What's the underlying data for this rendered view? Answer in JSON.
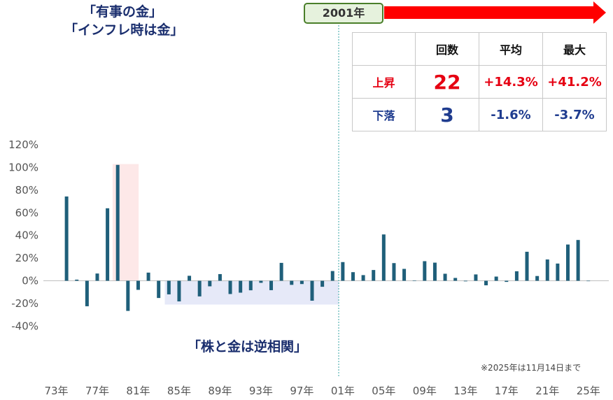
{
  "chart_data": {
    "type": "bar",
    "title": "",
    "xlabel": "",
    "ylabel": "",
    "ylim": [
      -40,
      120
    ],
    "yticks": [
      -40,
      -20,
      0,
      20,
      40,
      60,
      80,
      100,
      120
    ],
    "y_tick_labels": [
      "-40%",
      "-20%",
      "0%",
      "20%",
      "40%",
      "60%",
      "80%",
      "100%",
      "120%"
    ],
    "x_tick_labels": [
      "73年",
      "77年",
      "81年",
      "85年",
      "89年",
      "93年",
      "97年",
      "01年",
      "05年",
      "09年",
      "13年",
      "17年",
      "21年",
      "25年"
    ],
    "x_tick_years": [
      1973,
      1977,
      1981,
      1985,
      1989,
      1993,
      1997,
      2001,
      2005,
      2009,
      2013,
      2017,
      2021,
      2025
    ],
    "years": [
      1974,
      1975,
      1976,
      1977,
      1978,
      1979,
      1980,
      1981,
      1982,
      1983,
      1984,
      1985,
      1986,
      1987,
      1988,
      1989,
      1990,
      1991,
      1992,
      1993,
      1994,
      1995,
      1996,
      1997,
      1998,
      1999,
      2000,
      2001,
      2002,
      2003,
      2004,
      2005,
      2006,
      2007,
      2008,
      2009,
      2010,
      2011,
      2012,
      2013,
      2014,
      2015,
      2016,
      2017,
      2018,
      2019,
      2020,
      2021,
      2022,
      2023,
      2024,
      2025
    ],
    "values": [
      74.4,
      1.0,
      -22.5,
      6.4,
      64.0,
      102.3,
      -26.6,
      -8.0,
      7.2,
      -15.2,
      -12.0,
      -18.2,
      4.4,
      -13.8,
      -4.9,
      5.9,
      -11.7,
      -10.5,
      -8.4,
      -1.8,
      -8.3,
      15.8,
      -3.6,
      -2.9,
      -17.6,
      -5.3,
      8.6,
      16.5,
      7.6,
      5.0,
      9.5,
      40.9,
      15.6,
      10.5,
      0.3,
      17.3,
      16.0,
      6.2,
      2.5,
      -0.5,
      5.6,
      -4.0,
      3.7,
      -1.0,
      8.4,
      25.6,
      4.2,
      18.8,
      15.2,
      32.0,
      36.0,
      0
    ]
  },
  "style": {
    "bar_color": "#1f5f7a",
    "highlight_band_color": "#fde8e8",
    "inverse_band_color": "#e6e9f8",
    "divider_color": "#3aa6a6",
    "arrow_color": "#ff0000",
    "up_color": "#e60012",
    "down_color": "#1f3c8f"
  },
  "annotations": {
    "haven_line1": "「有事の金」",
    "haven_line2": "「インフレ時は金」",
    "inverse": "「株と金は逆相関」",
    "year_badge": "2001年",
    "footnote": "※2025年は11月14日まで"
  },
  "stats": {
    "headers": [
      "",
      "回数",
      "平均",
      "最大"
    ],
    "rows": [
      {
        "label": "上昇",
        "count": "22",
        "avg": "+14.3%",
        "max": "+41.2%"
      },
      {
        "label": "下落",
        "count": "3",
        "avg": "-1.6%",
        "max": "-3.7%"
      }
    ]
  }
}
